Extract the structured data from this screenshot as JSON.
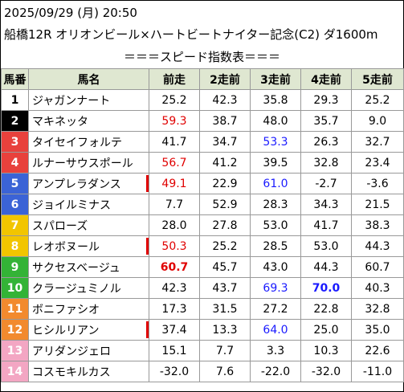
{
  "header": {
    "datetime": "2025/09/29 (月) 20:50",
    "race": "船橋12R オリオンビール×ハートビートナイター記念(C2) ダ1600m"
  },
  "section_title": "＝＝＝スピード指数表＝＝＝",
  "table": {
    "columns": [
      "馬番",
      "馬名",
      "前走",
      "2走前",
      "3走前",
      "4走前",
      "5走前"
    ],
    "rows": [
      {
        "no": "1",
        "name": "ジャガンナート",
        "bg": "#ffffff",
        "fg": "#000000",
        "mark": false,
        "vals": [
          {
            "v": "25.2"
          },
          {
            "v": "42.3"
          },
          {
            "v": "35.8"
          },
          {
            "v": "29.3"
          },
          {
            "v": "25.2"
          }
        ]
      },
      {
        "no": "2",
        "name": "マキネッタ",
        "bg": "#000000",
        "fg": "#ffffff",
        "mark": false,
        "vals": [
          {
            "v": "59.3",
            "c": "red"
          },
          {
            "v": "38.7"
          },
          {
            "v": "48.0"
          },
          {
            "v": "35.7"
          },
          {
            "v": "9.0"
          }
        ]
      },
      {
        "no": "3",
        "name": "タイセイフォルテ",
        "bg": "#e8413c",
        "fg": "#ffffff",
        "mark": false,
        "vals": [
          {
            "v": "41.7"
          },
          {
            "v": "34.7"
          },
          {
            "v": "53.3",
            "c": "blue"
          },
          {
            "v": "26.3"
          },
          {
            "v": "32.7"
          }
        ]
      },
      {
        "no": "4",
        "name": "ルナーサウスポール",
        "bg": "#e8413c",
        "fg": "#ffffff",
        "mark": false,
        "vals": [
          {
            "v": "56.7",
            "c": "red"
          },
          {
            "v": "41.2"
          },
          {
            "v": "39.5"
          },
          {
            "v": "32.8"
          },
          {
            "v": "23.4"
          }
        ]
      },
      {
        "no": "5",
        "name": "アンプレラダンス",
        "bg": "#3b63d6",
        "fg": "#ffffff",
        "mark": true,
        "vals": [
          {
            "v": "49.1",
            "c": "red"
          },
          {
            "v": "22.9"
          },
          {
            "v": "61.0",
            "c": "blue"
          },
          {
            "v": "-2.7"
          },
          {
            "v": "-3.6"
          }
        ]
      },
      {
        "no": "6",
        "name": "ジョイルミナス",
        "bg": "#3b63d6",
        "fg": "#ffffff",
        "mark": false,
        "vals": [
          {
            "v": "7.7"
          },
          {
            "v": "52.9"
          },
          {
            "v": "28.3"
          },
          {
            "v": "34.3"
          },
          {
            "v": "21.5"
          }
        ]
      },
      {
        "no": "7",
        "name": "スパローズ",
        "bg": "#f2c500",
        "fg": "#ffffff",
        "mark": false,
        "vals": [
          {
            "v": "28.0"
          },
          {
            "v": "27.8"
          },
          {
            "v": "53.0"
          },
          {
            "v": "41.7"
          },
          {
            "v": "38.3"
          }
        ]
      },
      {
        "no": "8",
        "name": "レオボヌール",
        "bg": "#f2c500",
        "fg": "#ffffff",
        "mark": true,
        "vals": [
          {
            "v": "50.3",
            "c": "red"
          },
          {
            "v": "25.2"
          },
          {
            "v": "28.5"
          },
          {
            "v": "53.0"
          },
          {
            "v": "44.3"
          }
        ]
      },
      {
        "no": "9",
        "name": "サクセスベージュ",
        "bg": "#33b336",
        "fg": "#ffffff",
        "mark": false,
        "vals": [
          {
            "v": "60.7",
            "c": "red",
            "b": true
          },
          {
            "v": "45.7"
          },
          {
            "v": "43.0"
          },
          {
            "v": "44.3"
          },
          {
            "v": "60.7"
          }
        ]
      },
      {
        "no": "10",
        "name": "クラージュミノル",
        "bg": "#33b336",
        "fg": "#ffffff",
        "mark": false,
        "vals": [
          {
            "v": "42.3"
          },
          {
            "v": "43.7"
          },
          {
            "v": "69.3",
            "c": "blue"
          },
          {
            "v": "70.0",
            "c": "blue",
            "b": true
          },
          {
            "v": "40.3"
          }
        ]
      },
      {
        "no": "11",
        "name": "ボニファシオ",
        "bg": "#f28a2e",
        "fg": "#ffffff",
        "mark": false,
        "vals": [
          {
            "v": "17.3"
          },
          {
            "v": "31.5"
          },
          {
            "v": "27.2"
          },
          {
            "v": "22.8"
          },
          {
            "v": "32.8"
          }
        ]
      },
      {
        "no": "12",
        "name": "ヒシルリアン",
        "bg": "#f28a2e",
        "fg": "#ffffff",
        "mark": true,
        "vals": [
          {
            "v": "37.4"
          },
          {
            "v": "13.3"
          },
          {
            "v": "64.0",
            "c": "blue"
          },
          {
            "v": "25.0"
          },
          {
            "v": "35.0"
          }
        ]
      },
      {
        "no": "13",
        "name": "アリダンジェロ",
        "bg": "#f3a6c3",
        "fg": "#ffffff",
        "mark": false,
        "vals": [
          {
            "v": "15.1"
          },
          {
            "v": "7.7"
          },
          {
            "v": "3.3"
          },
          {
            "v": "10.3"
          },
          {
            "v": "22.6"
          }
        ]
      },
      {
        "no": "14",
        "name": "コスモキルカス",
        "bg": "#f3a6c3",
        "fg": "#ffffff",
        "mark": false,
        "vals": [
          {
            "v": "-32.0"
          },
          {
            "v": "7.6"
          },
          {
            "v": "-22.0"
          },
          {
            "v": "-32.0"
          },
          {
            "v": "-11.0"
          }
        ]
      }
    ]
  }
}
